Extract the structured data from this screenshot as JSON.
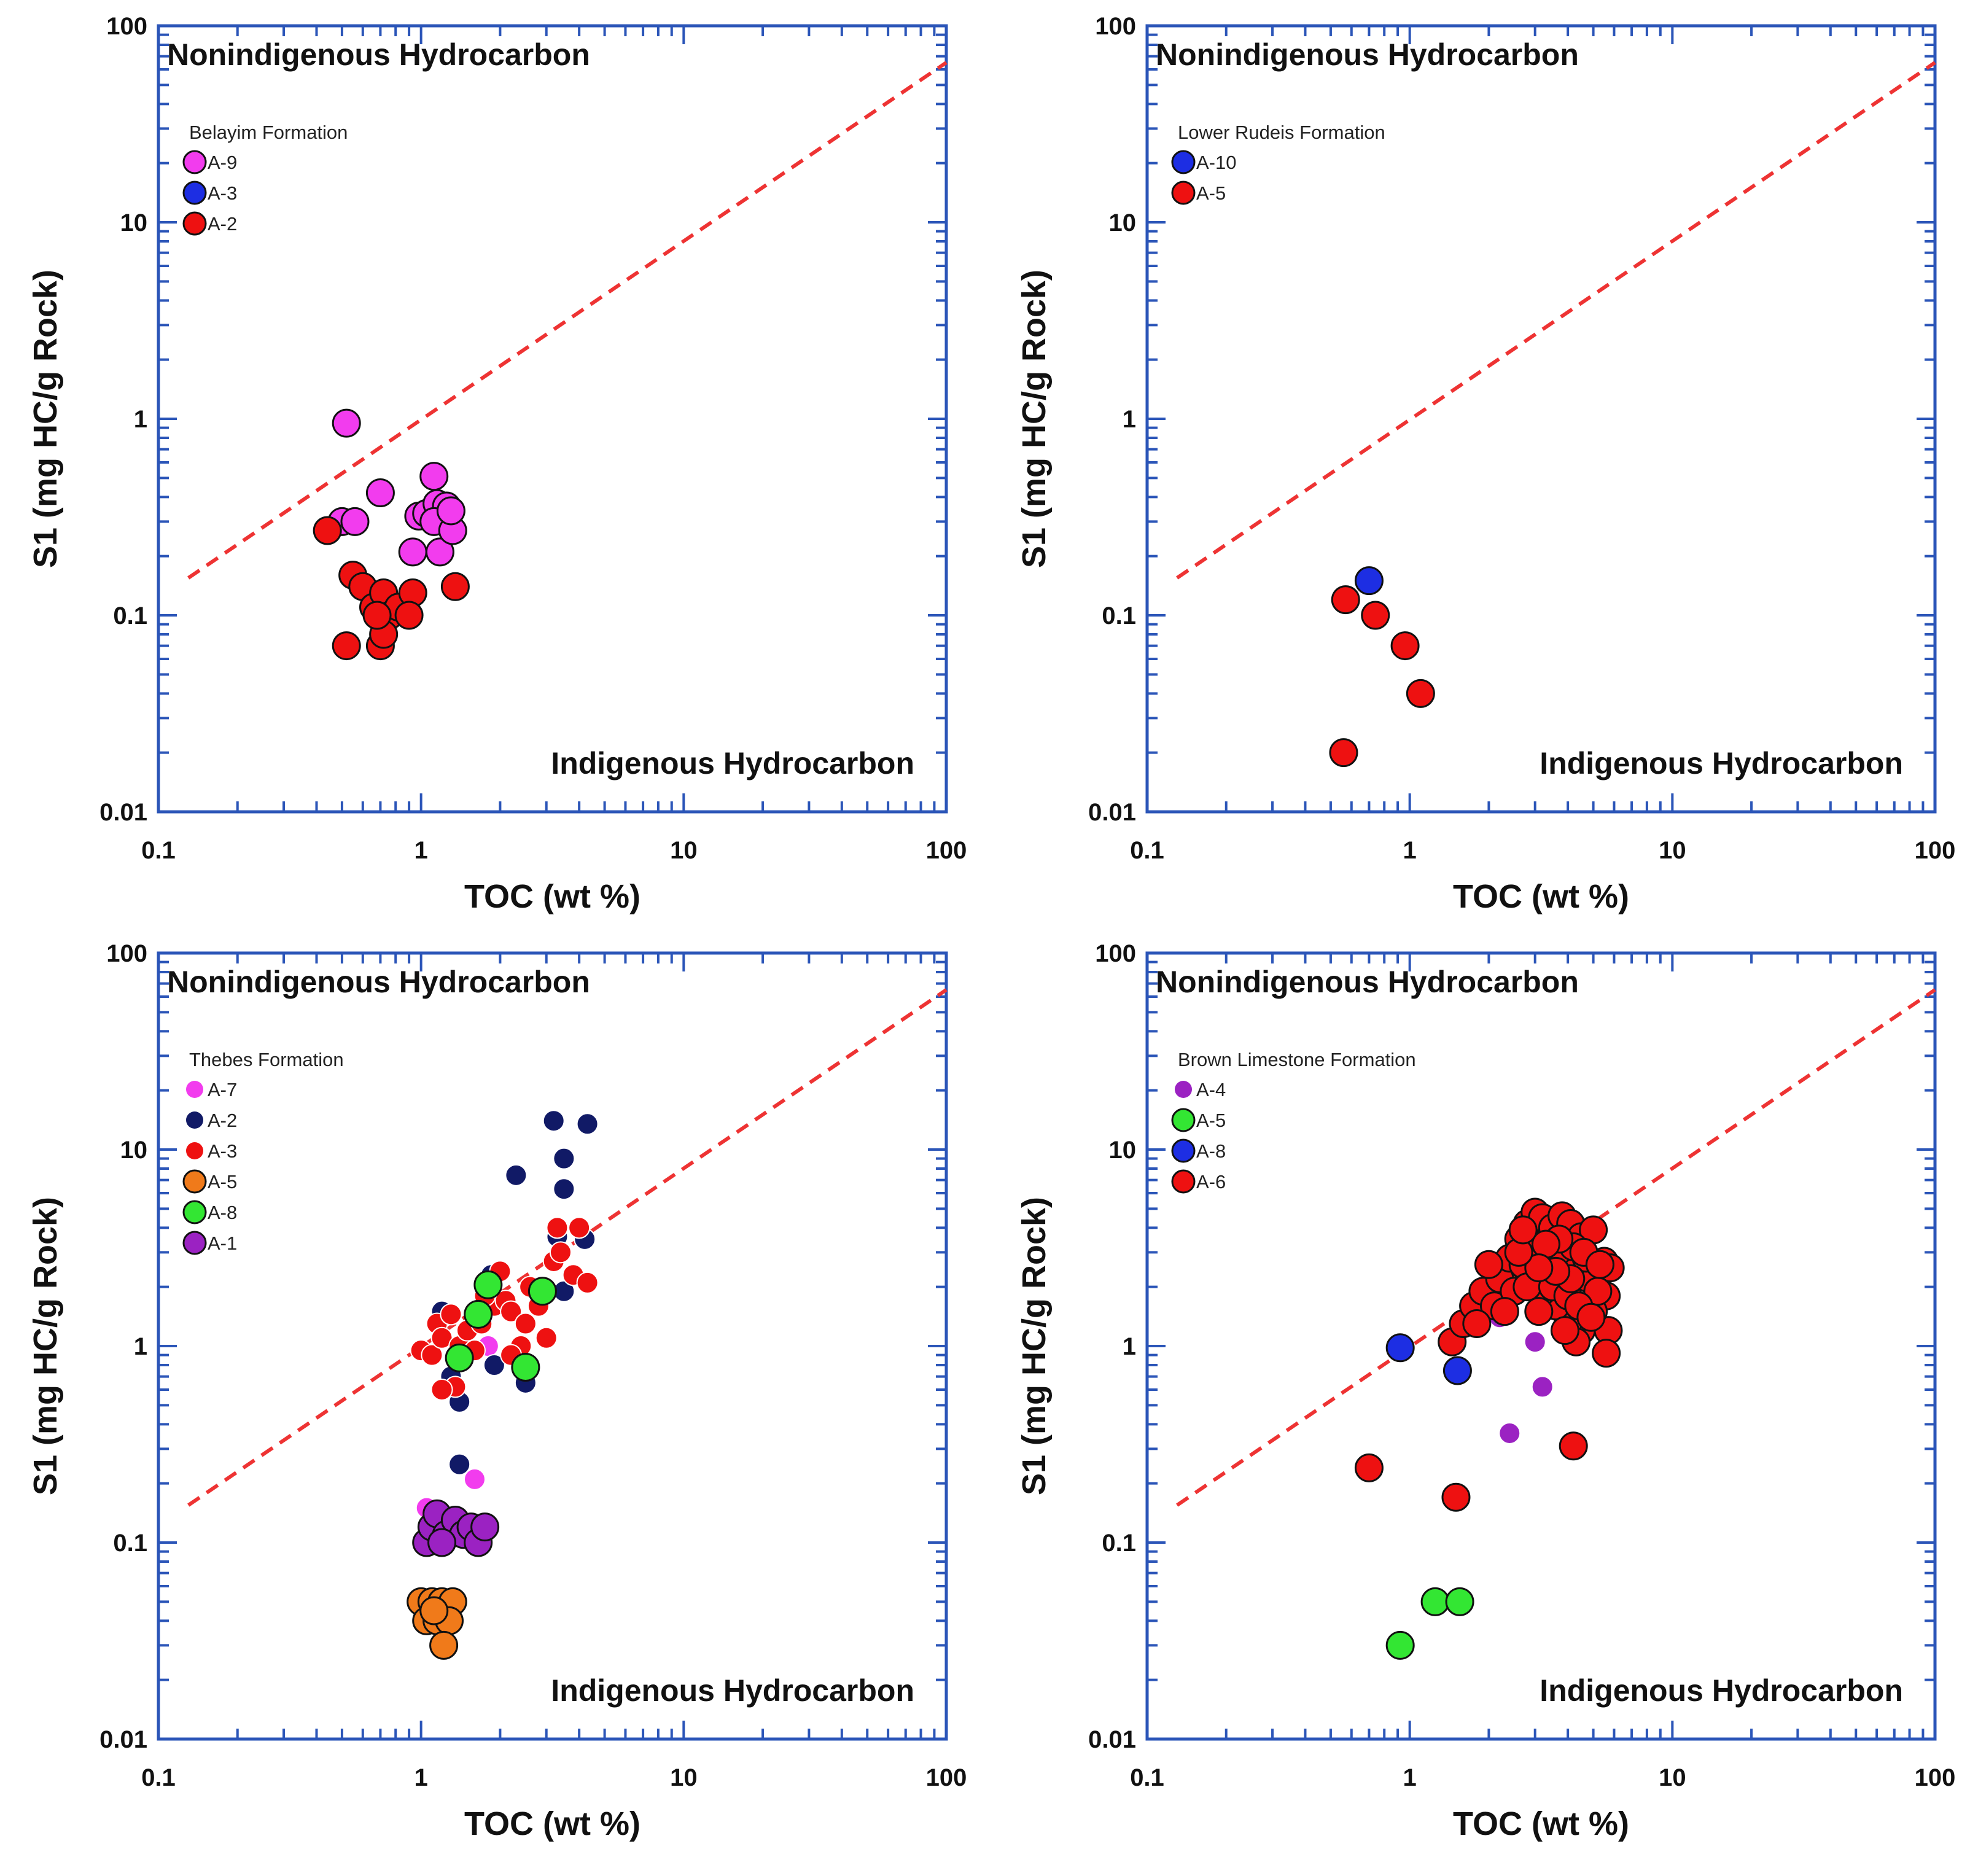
{
  "chart_data": [
    {
      "type": "scatter",
      "title": "",
      "xlabel": "TOC (wt %)",
      "ylabel": "S1 (mg HC/g Rock)",
      "xscale": "log",
      "yscale": "log",
      "xlim": [
        0.1,
        100
      ],
      "ylim": [
        0.01,
        100
      ],
      "xticks": [
        "0.1",
        "1",
        "10",
        "100"
      ],
      "yticks": [
        "0.01",
        "0.1",
        "1",
        "10",
        "100"
      ],
      "region_labels": {
        "upper": "Nonindigenous Hydrocarbon",
        "lower": "Indigenous Hydrocarbon"
      },
      "divider": {
        "style": "dashed",
        "color": "#ee3333",
        "from": [
          0.13,
          0.155
        ],
        "to": [
          100,
          65
        ]
      },
      "legend_title": "Belayim Formation",
      "marker_size": "large",
      "series": [
        {
          "name": "A-9",
          "color": "#f23cee",
          "points": [
            [
              0.52,
              0.95
            ],
            [
              0.5,
              0.3
            ],
            [
              0.56,
              0.3
            ],
            [
              0.7,
              0.42
            ],
            [
              0.93,
              0.21
            ],
            [
              0.98,
              0.32
            ],
            [
              1.05,
              0.33
            ],
            [
              1.12,
              0.51
            ],
            [
              1.15,
              0.37
            ],
            [
              1.18,
              0.21
            ],
            [
              1.25,
              0.36
            ],
            [
              1.12,
              0.3
            ],
            [
              1.32,
              0.27
            ],
            [
              1.3,
              0.34
            ]
          ]
        },
        {
          "name": "A-3",
          "color": "#1d2ee3",
          "points": []
        },
        {
          "name": "A-2",
          "color": "#ee1111",
          "points": [
            [
              0.44,
              0.27
            ],
            [
              0.55,
              0.16
            ],
            [
              0.6,
              0.14
            ],
            [
              0.66,
              0.11
            ],
            [
              0.72,
              0.13
            ],
            [
              0.76,
              0.1
            ],
            [
              0.82,
              0.11
            ],
            [
              0.93,
              0.13
            ],
            [
              0.9,
              0.1
            ],
            [
              0.52,
              0.07
            ],
            [
              0.7,
              0.07
            ],
            [
              0.72,
              0.08
            ],
            [
              1.35,
              0.14
            ],
            [
              0.68,
              0.1
            ]
          ]
        }
      ]
    },
    {
      "type": "scatter",
      "title": "",
      "xlabel": "TOC (wt %)",
      "ylabel": "S1 (mg HC/g Rock)",
      "xscale": "log",
      "yscale": "log",
      "xlim": [
        0.1,
        100
      ],
      "ylim": [
        0.01,
        100
      ],
      "xticks": [
        "0.1",
        "1",
        "10",
        "100"
      ],
      "yticks": [
        "0.01",
        "0.1",
        "1",
        "10",
        "100"
      ],
      "region_labels": {
        "upper": "Nonindigenous Hydrocarbon",
        "lower": "Indigenous Hydrocarbon"
      },
      "divider": {
        "style": "dashed",
        "color": "#ee3333",
        "from": [
          0.13,
          0.155
        ],
        "to": [
          100,
          65
        ]
      },
      "legend_title": "Lower Rudeis Formation",
      "marker_size": "large",
      "series": [
        {
          "name": "A-10",
          "color": "#1d2ee3",
          "points": [
            [
              0.7,
              0.15
            ]
          ]
        },
        {
          "name": "A-5",
          "color": "#ee1111",
          "points": [
            [
              0.57,
              0.12
            ],
            [
              0.74,
              0.1
            ],
            [
              0.96,
              0.07
            ],
            [
              1.1,
              0.04
            ],
            [
              0.56,
              0.02
            ]
          ]
        }
      ]
    },
    {
      "type": "scatter",
      "title": "",
      "xlabel": "TOC (wt %)",
      "ylabel": "S1 (mg HC/g Rock)",
      "xscale": "log",
      "yscale": "log",
      "xlim": [
        0.1,
        100
      ],
      "ylim": [
        0.01,
        100
      ],
      "xticks": [
        "0.1",
        "1",
        "10",
        "100"
      ],
      "yticks": [
        "0.01",
        "0.1",
        "1",
        "10",
        "100"
      ],
      "region_labels": {
        "upper": "Nonindigenous Hydrocarbon",
        "lower": "Indigenous Hydrocarbon"
      },
      "divider": {
        "style": "dashed",
        "color": "#ee3333",
        "from": [
          0.13,
          0.155
        ],
        "to": [
          100,
          65
        ]
      },
      "legend_title": "Thebes Formation",
      "marker_size": "mixed",
      "series": [
        {
          "name": "A-7",
          "color": "#f23cee",
          "size": "small",
          "points": [
            [
              1.6,
              0.21
            ],
            [
              1.05,
              0.15
            ],
            [
              1.8,
              1.0
            ]
          ]
        },
        {
          "name": "A-2",
          "color": "#111a66",
          "size": "small",
          "points": [
            [
              3.2,
              14
            ],
            [
              4.3,
              13.5
            ],
            [
              3.5,
              9
            ],
            [
              2.3,
              7.4
            ],
            [
              3.5,
              6.3
            ],
            [
              3.3,
              3.6
            ],
            [
              4.2,
              3.5
            ],
            [
              1.85,
              2.3
            ],
            [
              1.2,
              1.5
            ],
            [
              1.9,
              0.8
            ],
            [
              1.3,
              0.7
            ],
            [
              1.4,
              0.52
            ],
            [
              1.4,
              0.25
            ],
            [
              2.5,
              0.65
            ],
            [
              3.5,
              1.9
            ]
          ]
        },
        {
          "name": "A-3",
          "color": "#ee1111",
          "size": "small",
          "points": [
            [
              1.0,
              0.95
            ],
            [
              1.1,
              0.9
            ],
            [
              1.15,
              1.3
            ],
            [
              1.2,
              1.1
            ],
            [
              1.3,
              1.45
            ],
            [
              1.35,
              0.62
            ],
            [
              1.2,
              0.6
            ],
            [
              1.4,
              1.0
            ],
            [
              1.5,
              1.2
            ],
            [
              1.6,
              0.95
            ],
            [
              1.7,
              1.3
            ],
            [
              1.9,
              1.6
            ],
            [
              2.0,
              2.4
            ],
            [
              2.1,
              1.7
            ],
            [
              2.2,
              1.5
            ],
            [
              2.4,
              1.0
            ],
            [
              2.5,
              1.3
            ],
            [
              2.6,
              2.0
            ],
            [
              2.8,
              1.6
            ],
            [
              3.0,
              1.1
            ],
            [
              3.2,
              2.7
            ],
            [
              3.3,
              4.0
            ],
            [
              3.4,
              3.0
            ],
            [
              3.8,
              2.3
            ],
            [
              4.0,
              4.0
            ],
            [
              4.3,
              2.1
            ],
            [
              1.75,
              1.8
            ],
            [
              2.2,
              0.9
            ]
          ]
        },
        {
          "name": "A-5",
          "color": "#f07a1a",
          "size": "large",
          "points": [
            [
              1.0,
              0.05
            ],
            [
              1.1,
              0.05
            ],
            [
              1.2,
              0.05
            ],
            [
              1.32,
              0.05
            ],
            [
              1.05,
              0.04
            ],
            [
              1.15,
              0.04
            ],
            [
              1.28,
              0.04
            ],
            [
              1.22,
              0.03
            ],
            [
              1.12,
              0.045
            ]
          ]
        },
        {
          "name": "A-8",
          "color": "#33e633",
          "size": "large",
          "points": [
            [
              1.4,
              0.87
            ],
            [
              1.65,
              1.45
            ],
            [
              1.8,
              2.05
            ],
            [
              2.5,
              0.78
            ],
            [
              2.9,
              1.9
            ]
          ]
        },
        {
          "name": "A-1",
          "color": "#9b22c2",
          "size": "large",
          "points": [
            [
              1.05,
              0.1
            ],
            [
              1.1,
              0.12
            ],
            [
              1.15,
              0.14
            ],
            [
              1.25,
              0.11
            ],
            [
              1.35,
              0.13
            ],
            [
              1.45,
              0.11
            ],
            [
              1.55,
              0.12
            ],
            [
              1.65,
              0.1
            ],
            [
              1.75,
              0.12
            ],
            [
              1.2,
              0.1
            ]
          ]
        }
      ]
    },
    {
      "type": "scatter",
      "title": "",
      "xlabel": "TOC (wt %)",
      "ylabel": "S1 (mg HC/g Rock)",
      "xscale": "log",
      "yscale": "log",
      "xlim": [
        0.1,
        100
      ],
      "ylim": [
        0.01,
        100
      ],
      "xticks": [
        "0.1",
        "1",
        "10",
        "100"
      ],
      "yticks": [
        "0.01",
        "0.1",
        "1",
        "10",
        "100"
      ],
      "region_labels": {
        "upper": "Nonindigenous Hydrocarbon",
        "lower": "Indigenous Hydrocarbon"
      },
      "divider": {
        "style": "dashed",
        "color": "#ee3333",
        "from": [
          0.13,
          0.155
        ],
        "to": [
          100,
          65
        ]
      },
      "legend_title": "Brown Limestone Formation",
      "marker_size": "large",
      "series": [
        {
          "name": "A-4",
          "color": "#9b22c2",
          "size": "small",
          "points": [
            [
              2.2,
              1.4
            ],
            [
              3.0,
              1.05
            ],
            [
              3.2,
              0.62
            ],
            [
              2.4,
              0.36
            ]
          ]
        },
        {
          "name": "A-5",
          "color": "#33e633",
          "points": [
            [
              0.92,
              0.03
            ],
            [
              1.25,
              0.05
            ],
            [
              1.55,
              0.05
            ]
          ]
        },
        {
          "name": "A-8",
          "color": "#1d2ee3",
          "points": [
            [
              0.92,
              0.98
            ],
            [
              1.52,
              0.75
            ]
          ]
        },
        {
          "name": "A-6",
          "color": "#ee1111",
          "points": [
            [
              0.7,
              0.24
            ],
            [
              1.5,
              0.17
            ],
            [
              4.2,
              0.31
            ],
            [
              1.45,
              1.05
            ],
            [
              1.6,
              1.3
            ],
            [
              1.75,
              1.6
            ],
            [
              1.9,
              1.9
            ],
            [
              2.1,
              1.6
            ],
            [
              2.2,
              2.2
            ],
            [
              2.4,
              2.8
            ],
            [
              2.6,
              3.5
            ],
            [
              2.8,
              4.2
            ],
            [
              3.0,
              4.8
            ],
            [
              3.2,
              4.5
            ],
            [
              3.5,
              4.0
            ],
            [
              3.8,
              4.6
            ],
            [
              4.1,
              4.2
            ],
            [
              4.5,
              3.6
            ],
            [
              5.0,
              3.9
            ],
            [
              5.5,
              2.7
            ],
            [
              5.8,
              2.5
            ],
            [
              5.6,
              1.8
            ],
            [
              5.7,
              1.2
            ],
            [
              5.6,
              0.92
            ],
            [
              5.0,
              1.5
            ],
            [
              4.5,
              1.2
            ],
            [
              4.0,
              1.3
            ],
            [
              3.6,
              1.6
            ],
            [
              3.2,
              1.9
            ],
            [
              2.9,
              2.3
            ],
            [
              2.7,
              2.6
            ],
            [
              2.5,
              1.9
            ],
            [
              2.3,
              1.5
            ],
            [
              3.0,
              3.0
            ],
            [
              3.4,
              2.6
            ],
            [
              3.9,
              2.9
            ],
            [
              4.3,
              2.4
            ],
            [
              4.8,
              2.2
            ],
            [
              5.2,
              1.9
            ],
            [
              4.7,
              2.8
            ],
            [
              4.2,
              3.2
            ],
            [
              3.7,
              3.5
            ],
            [
              3.3,
              3.3
            ],
            [
              2.8,
              2.0
            ],
            [
              3.1,
              1.5
            ],
            [
              3.5,
              2.0
            ],
            [
              4.0,
              1.8
            ],
            [
              4.4,
              1.6
            ],
            [
              4.9,
              1.4
            ],
            [
              4.1,
              2.2
            ],
            [
              3.6,
              2.4
            ],
            [
              3.1,
              2.5
            ],
            [
              2.6,
              3.0
            ],
            [
              2.7,
              3.9
            ],
            [
              4.6,
              3.0
            ],
            [
              5.3,
              2.6
            ],
            [
              4.3,
              1.05
            ],
            [
              3.9,
              1.2
            ],
            [
              2.0,
              2.6
            ],
            [
              1.8,
              1.3
            ]
          ]
        }
      ]
    }
  ]
}
